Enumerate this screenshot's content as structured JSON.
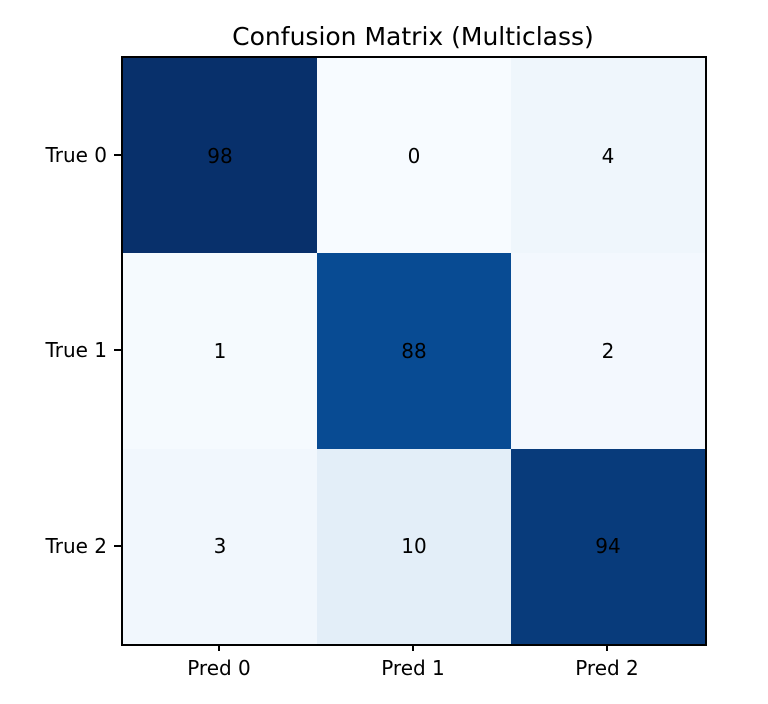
{
  "chart_data": {
    "type": "heatmap",
    "title": "Confusion Matrix (Multiclass)",
    "row_labels": [
      "True 0",
      "True 1",
      "True 2"
    ],
    "col_labels": [
      "Pred 0",
      "Pred 1",
      "Pred 2"
    ],
    "values": [
      [
        98,
        0,
        4
      ],
      [
        1,
        88,
        2
      ],
      [
        3,
        10,
        94
      ]
    ],
    "colormap": "Blues",
    "value_range": [
      0,
      98
    ],
    "cell_colors": [
      [
        "#08306b",
        "#f7fbff",
        "#eff6fc"
      ],
      [
        "#f5fafe",
        "#084b93",
        "#f3f8fe"
      ],
      [
        "#f1f7fd",
        "#e3eef8",
        "#083b7b"
      ]
    ],
    "annotation_text_color": "#000000",
    "axis_spine_color": "#000000",
    "background_color": "#ffffff",
    "legend": "none",
    "grid": "off"
  }
}
